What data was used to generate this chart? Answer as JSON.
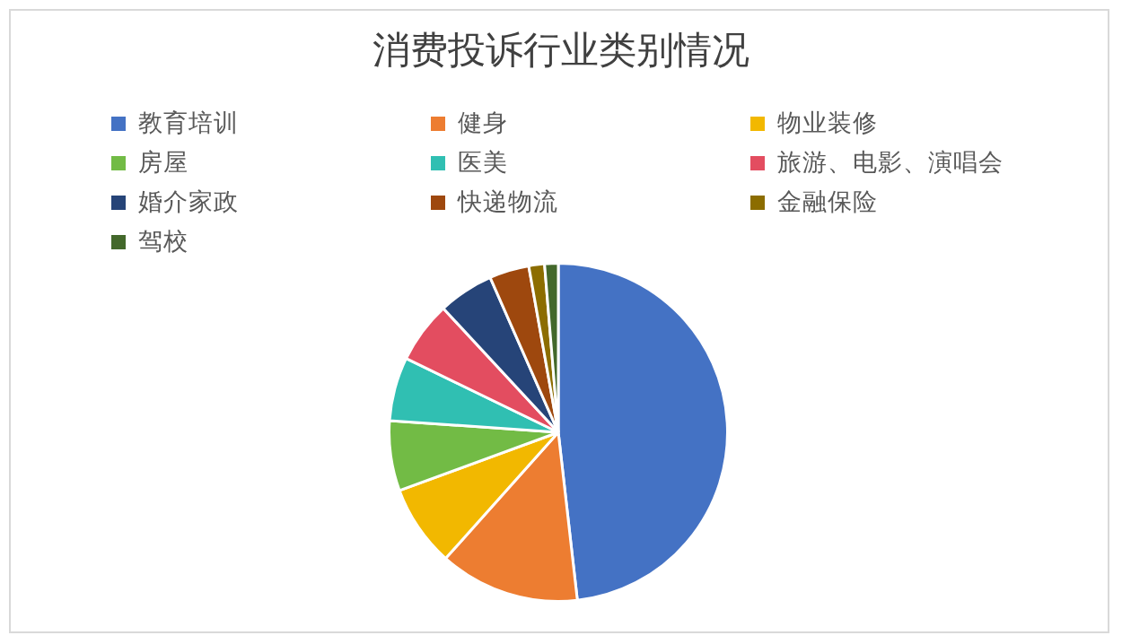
{
  "chart_data": {
    "type": "pie",
    "title": "消费投诉行业类别情况",
    "categories": [
      "教育培训",
      "健身",
      "物业装修",
      "房屋",
      "医美",
      "旅游、电影、演唱会",
      "婚介家政",
      "快递物流",
      "金融保险",
      "驾校"
    ],
    "values": [
      48.2,
      13.4,
      7.8,
      6.7,
      6.1,
      5.9,
      5.3,
      3.8,
      1.5,
      1.3
    ],
    "colors": [
      "#4472c4",
      "#ed7d31",
      "#f2b800",
      "#72bb45",
      "#30bfb2",
      "#e34d60",
      "#264478",
      "#9e480e",
      "#8c6d00",
      "#43682b"
    ],
    "legend": "top"
  }
}
